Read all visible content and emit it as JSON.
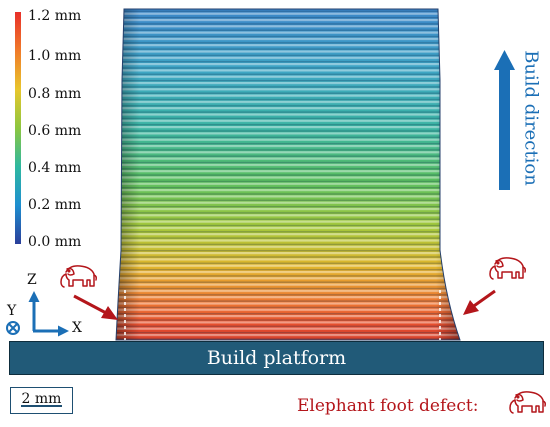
{
  "colorbar": {
    "ticks": [
      "1.2 mm",
      "1.0 mm",
      "0.8 mm",
      "0.6 mm",
      "0.4 mm",
      "0.2 mm",
      "0.0 mm"
    ],
    "stops": [
      "#e8302a",
      "#f07a2a",
      "#e8c62c",
      "#8cc63f",
      "#2eb8a0",
      "#1e8fd0",
      "#2a3e9a"
    ]
  },
  "build_direction": {
    "label": "Build direction",
    "color": "#1b6fb6"
  },
  "platform": {
    "label": "Build platform",
    "color": "#215a78"
  },
  "axes": {
    "z": "Z",
    "y": "Y",
    "x": "X"
  },
  "scale_bar": {
    "label": "2 mm"
  },
  "legend": {
    "label": "Elephant foot defect:",
    "icon": "elephant-icon"
  },
  "defect_color": "#b4161b"
}
